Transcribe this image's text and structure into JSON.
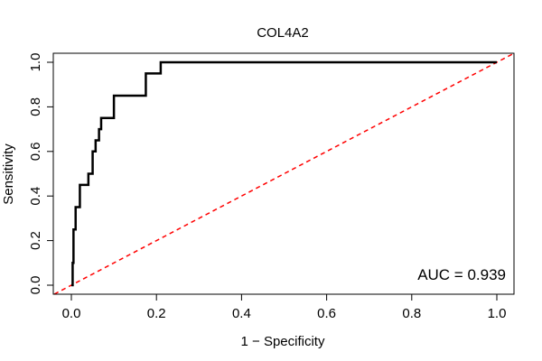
{
  "chart_data": {
    "type": "line",
    "title": "COL4A2",
    "xlabel": "1 − Specificity",
    "ylabel": "Sensitivity",
    "xlim": [
      0,
      1
    ],
    "ylim": [
      0,
      1
    ],
    "xticks": [
      "0.0",
      "0.2",
      "0.4",
      "0.6",
      "0.8",
      "1.0"
    ],
    "yticks": [
      "0.0",
      "0.2",
      "0.4",
      "0.6",
      "0.8",
      "1.0"
    ],
    "annotation": "AUC = 0.939",
    "series": [
      {
        "name": "ROC",
        "color": "#000000",
        "style": "solid",
        "x": [
          0.0,
          0.003,
          0.003,
          0.005,
          0.005,
          0.01,
          0.01,
          0.02,
          0.02,
          0.04,
          0.04,
          0.05,
          0.05,
          0.057,
          0.057,
          0.065,
          0.065,
          0.07,
          0.07,
          0.08,
          0.08,
          0.1,
          0.1,
          0.175,
          0.175,
          0.21,
          0.21,
          1.0
        ],
        "y": [
          0.0,
          0.0,
          0.1,
          0.1,
          0.25,
          0.25,
          0.35,
          0.35,
          0.45,
          0.45,
          0.5,
          0.5,
          0.6,
          0.6,
          0.65,
          0.65,
          0.7,
          0.7,
          0.75,
          0.75,
          0.75,
          0.75,
          0.85,
          0.85,
          0.95,
          0.95,
          1.0,
          1.0
        ]
      },
      {
        "name": "Reference",
        "color": "#ff0000",
        "style": "dashed",
        "x": [
          0.0,
          1.0
        ],
        "y": [
          0.0,
          1.0
        ]
      }
    ]
  }
}
